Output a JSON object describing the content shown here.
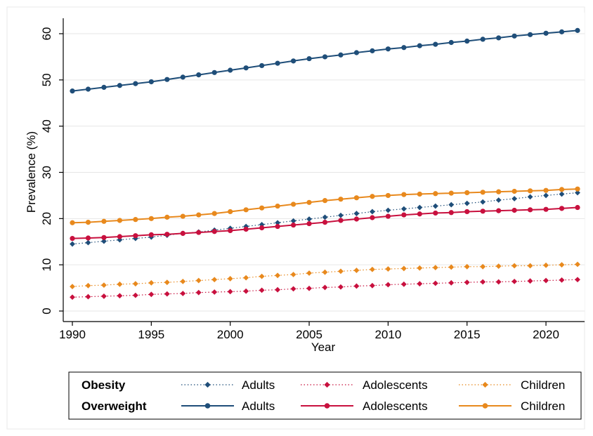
{
  "chart_data": {
    "type": "line",
    "title": "",
    "xlabel": "Year",
    "ylabel": "Prevalence (%)",
    "xlim": [
      1990,
      2022
    ],
    "ylim": [
      0,
      62
    ],
    "x_ticks": [
      1990,
      1995,
      2000,
      2005,
      2010,
      2015,
      2020
    ],
    "y_ticks": [
      0,
      10,
      20,
      30,
      40,
      50,
      60
    ],
    "grid": "horizontal",
    "legend_position": "bottom",
    "legend_groups": [
      "Obesity",
      "Overweight"
    ],
    "x": [
      1990,
      1991,
      1992,
      1993,
      1994,
      1995,
      1996,
      1997,
      1998,
      1999,
      2000,
      2001,
      2002,
      2003,
      2004,
      2005,
      2006,
      2007,
      2008,
      2009,
      2010,
      2011,
      2012,
      2013,
      2014,
      2015,
      2016,
      2017,
      2018,
      2019,
      2020,
      2021,
      2022
    ],
    "series": [
      {
        "group": "Obesity",
        "name": "Adults",
        "color": "#1f4e79",
        "line": "dotted",
        "marker": "diamond",
        "values": [
          14.5,
          14.8,
          15.1,
          15.4,
          15.7,
          16.0,
          16.4,
          16.8,
          17.1,
          17.5,
          17.9,
          18.3,
          18.7,
          19.1,
          19.5,
          19.9,
          20.3,
          20.7,
          21.1,
          21.5,
          21.8,
          22.1,
          22.4,
          22.7,
          23.0,
          23.3,
          23.6,
          24.0,
          24.3,
          24.7,
          25.0,
          25.3,
          25.6
        ]
      },
      {
        "group": "Obesity",
        "name": "Adolescents",
        "color": "#c8103e",
        "line": "dotted",
        "marker": "diamond",
        "values": [
          3.0,
          3.1,
          3.2,
          3.3,
          3.4,
          3.6,
          3.7,
          3.8,
          4.0,
          4.1,
          4.2,
          4.3,
          4.5,
          4.6,
          4.8,
          4.9,
          5.1,
          5.2,
          5.4,
          5.5,
          5.7,
          5.8,
          5.9,
          6.0,
          6.1,
          6.2,
          6.3,
          6.3,
          6.4,
          6.5,
          6.6,
          6.7,
          6.8
        ]
      },
      {
        "group": "Obesity",
        "name": "Children",
        "color": "#e8891d",
        "line": "dotted",
        "marker": "diamond",
        "values": [
          5.3,
          5.5,
          5.6,
          5.8,
          5.9,
          6.1,
          6.2,
          6.4,
          6.6,
          6.8,
          7.0,
          7.2,
          7.5,
          7.7,
          7.9,
          8.2,
          8.4,
          8.6,
          8.8,
          9.0,
          9.1,
          9.2,
          9.3,
          9.4,
          9.5,
          9.6,
          9.6,
          9.7,
          9.8,
          9.8,
          9.9,
          10.0,
          10.1
        ]
      },
      {
        "group": "Overweight",
        "name": "Adults",
        "color": "#1f4e79",
        "line": "solid",
        "marker": "circle",
        "values": [
          47.6,
          48.0,
          48.4,
          48.8,
          49.2,
          49.6,
          50.1,
          50.6,
          51.1,
          51.6,
          52.1,
          52.6,
          53.1,
          53.6,
          54.1,
          54.6,
          55.0,
          55.4,
          55.9,
          56.3,
          56.7,
          57.0,
          57.4,
          57.7,
          58.1,
          58.4,
          58.8,
          59.1,
          59.5,
          59.8,
          60.1,
          60.4,
          60.7
        ]
      },
      {
        "group": "Overweight",
        "name": "Adolescents",
        "color": "#c8103e",
        "line": "solid",
        "marker": "circle",
        "values": [
          15.7,
          15.8,
          15.9,
          16.1,
          16.3,
          16.5,
          16.6,
          16.8,
          17.0,
          17.2,
          17.4,
          17.7,
          18.0,
          18.3,
          18.6,
          18.9,
          19.2,
          19.6,
          19.9,
          20.2,
          20.5,
          20.8,
          21.0,
          21.2,
          21.3,
          21.5,
          21.6,
          21.7,
          21.8,
          21.9,
          22.0,
          22.2,
          22.4
        ]
      },
      {
        "group": "Overweight",
        "name": "Children",
        "color": "#e8891d",
        "line": "solid",
        "marker": "circle",
        "values": [
          19.1,
          19.2,
          19.4,
          19.6,
          19.8,
          20.0,
          20.3,
          20.5,
          20.8,
          21.1,
          21.5,
          21.9,
          22.3,
          22.7,
          23.1,
          23.5,
          23.9,
          24.2,
          24.5,
          24.8,
          25.0,
          25.2,
          25.3,
          25.4,
          25.5,
          25.6,
          25.7,
          25.8,
          25.9,
          26.0,
          26.1,
          26.3,
          26.4
        ]
      }
    ]
  }
}
